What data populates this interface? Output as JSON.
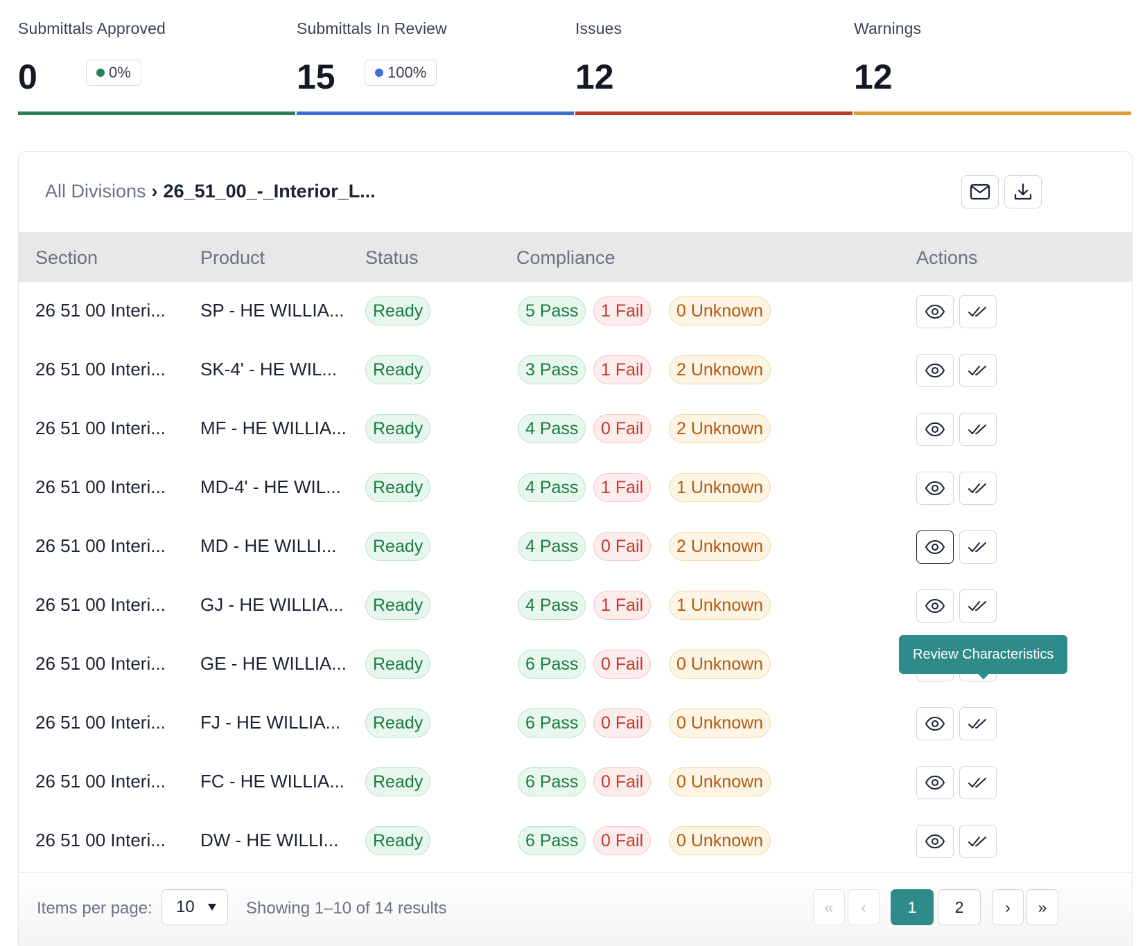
{
  "stats": [
    {
      "label": "Submittals Approved",
      "value": "0",
      "badge": "0%",
      "dot_color": "#2e7d5b",
      "bar_color": "#2e7d5b"
    },
    {
      "label": "Submittals In Review",
      "value": "15",
      "badge": "100%",
      "dot_color": "#3b6fd6",
      "bar_color": "#3b6fd6"
    },
    {
      "label": "Issues",
      "value": "12",
      "badge": null,
      "bar_color": "#c0392b"
    },
    {
      "label": "Warnings",
      "value": "12",
      "badge": null,
      "bar_color": "#e39a36"
    }
  ],
  "breadcrumb": {
    "root": "All Divisions",
    "separator": "›",
    "current": "26_51_00_-_Interior_L..."
  },
  "header_actions": {
    "email_icon": "mail-icon",
    "download_icon": "download-icon"
  },
  "table": {
    "headers": {
      "section": "Section",
      "product": "Product",
      "status": "Status",
      "compliance": "Compliance",
      "actions": "Actions"
    },
    "rows": [
      {
        "section": "26 51 00 Interi...",
        "product": "SP - HE WILLIA...",
        "status": "Ready",
        "pass": "5 Pass",
        "fail": "1 Fail",
        "unknown": "0 Unknown"
      },
      {
        "section": "26 51 00 Interi...",
        "product": "SK-4' - HE WIL...",
        "status": "Ready",
        "pass": "3 Pass",
        "fail": "1 Fail",
        "unknown": "2 Unknown"
      },
      {
        "section": "26 51 00 Interi...",
        "product": "MF - HE WILLIA...",
        "status": "Ready",
        "pass": "4 Pass",
        "fail": "0 Fail",
        "unknown": "2 Unknown"
      },
      {
        "section": "26 51 00 Interi...",
        "product": "MD-4' - HE WIL...",
        "status": "Ready",
        "pass": "4 Pass",
        "fail": "1 Fail",
        "unknown": "1 Unknown"
      },
      {
        "section": "26 51 00 Interi...",
        "product": "MD - HE WILLI...",
        "status": "Ready",
        "pass": "4 Pass",
        "fail": "0 Fail",
        "unknown": "2 Unknown"
      },
      {
        "section": "26 51 00 Interi...",
        "product": "GJ - HE WILLIA...",
        "status": "Ready",
        "pass": "4 Pass",
        "fail": "1 Fail",
        "unknown": "1 Unknown"
      },
      {
        "section": "26 51 00 Interi...",
        "product": "GE - HE WILLIA...",
        "status": "Ready",
        "pass": "6 Pass",
        "fail": "0 Fail",
        "unknown": "0 Unknown"
      },
      {
        "section": "26 51 00 Interi...",
        "product": "FJ - HE WILLIA...",
        "status": "Ready",
        "pass": "6 Pass",
        "fail": "0 Fail",
        "unknown": "0 Unknown"
      },
      {
        "section": "26 51 00 Interi...",
        "product": "FC - HE WILLIA...",
        "status": "Ready",
        "pass": "6 Pass",
        "fail": "0 Fail",
        "unknown": "0 Unknown"
      },
      {
        "section": "26 51 00 Interi...",
        "product": "DW - HE WILLI...",
        "status": "Ready",
        "pass": "6 Pass",
        "fail": "0 Fail",
        "unknown": "0 Unknown"
      }
    ]
  },
  "tooltip": {
    "text": "Review Characteristics"
  },
  "footer": {
    "items_per_page_label": "Items per page:",
    "items_per_page_value": "10",
    "showing_text": "Showing 1–10 of 14 results",
    "pages": [
      "1",
      "2"
    ],
    "current_page": "1",
    "first_glyph": "«",
    "prev_glyph": "‹",
    "next_glyph": "›",
    "last_glyph": "»"
  },
  "colors": {
    "accent": "#2f8a8a",
    "pass": "#1c7a45",
    "fail": "#c03a2b",
    "unknown": "#b25a12"
  }
}
